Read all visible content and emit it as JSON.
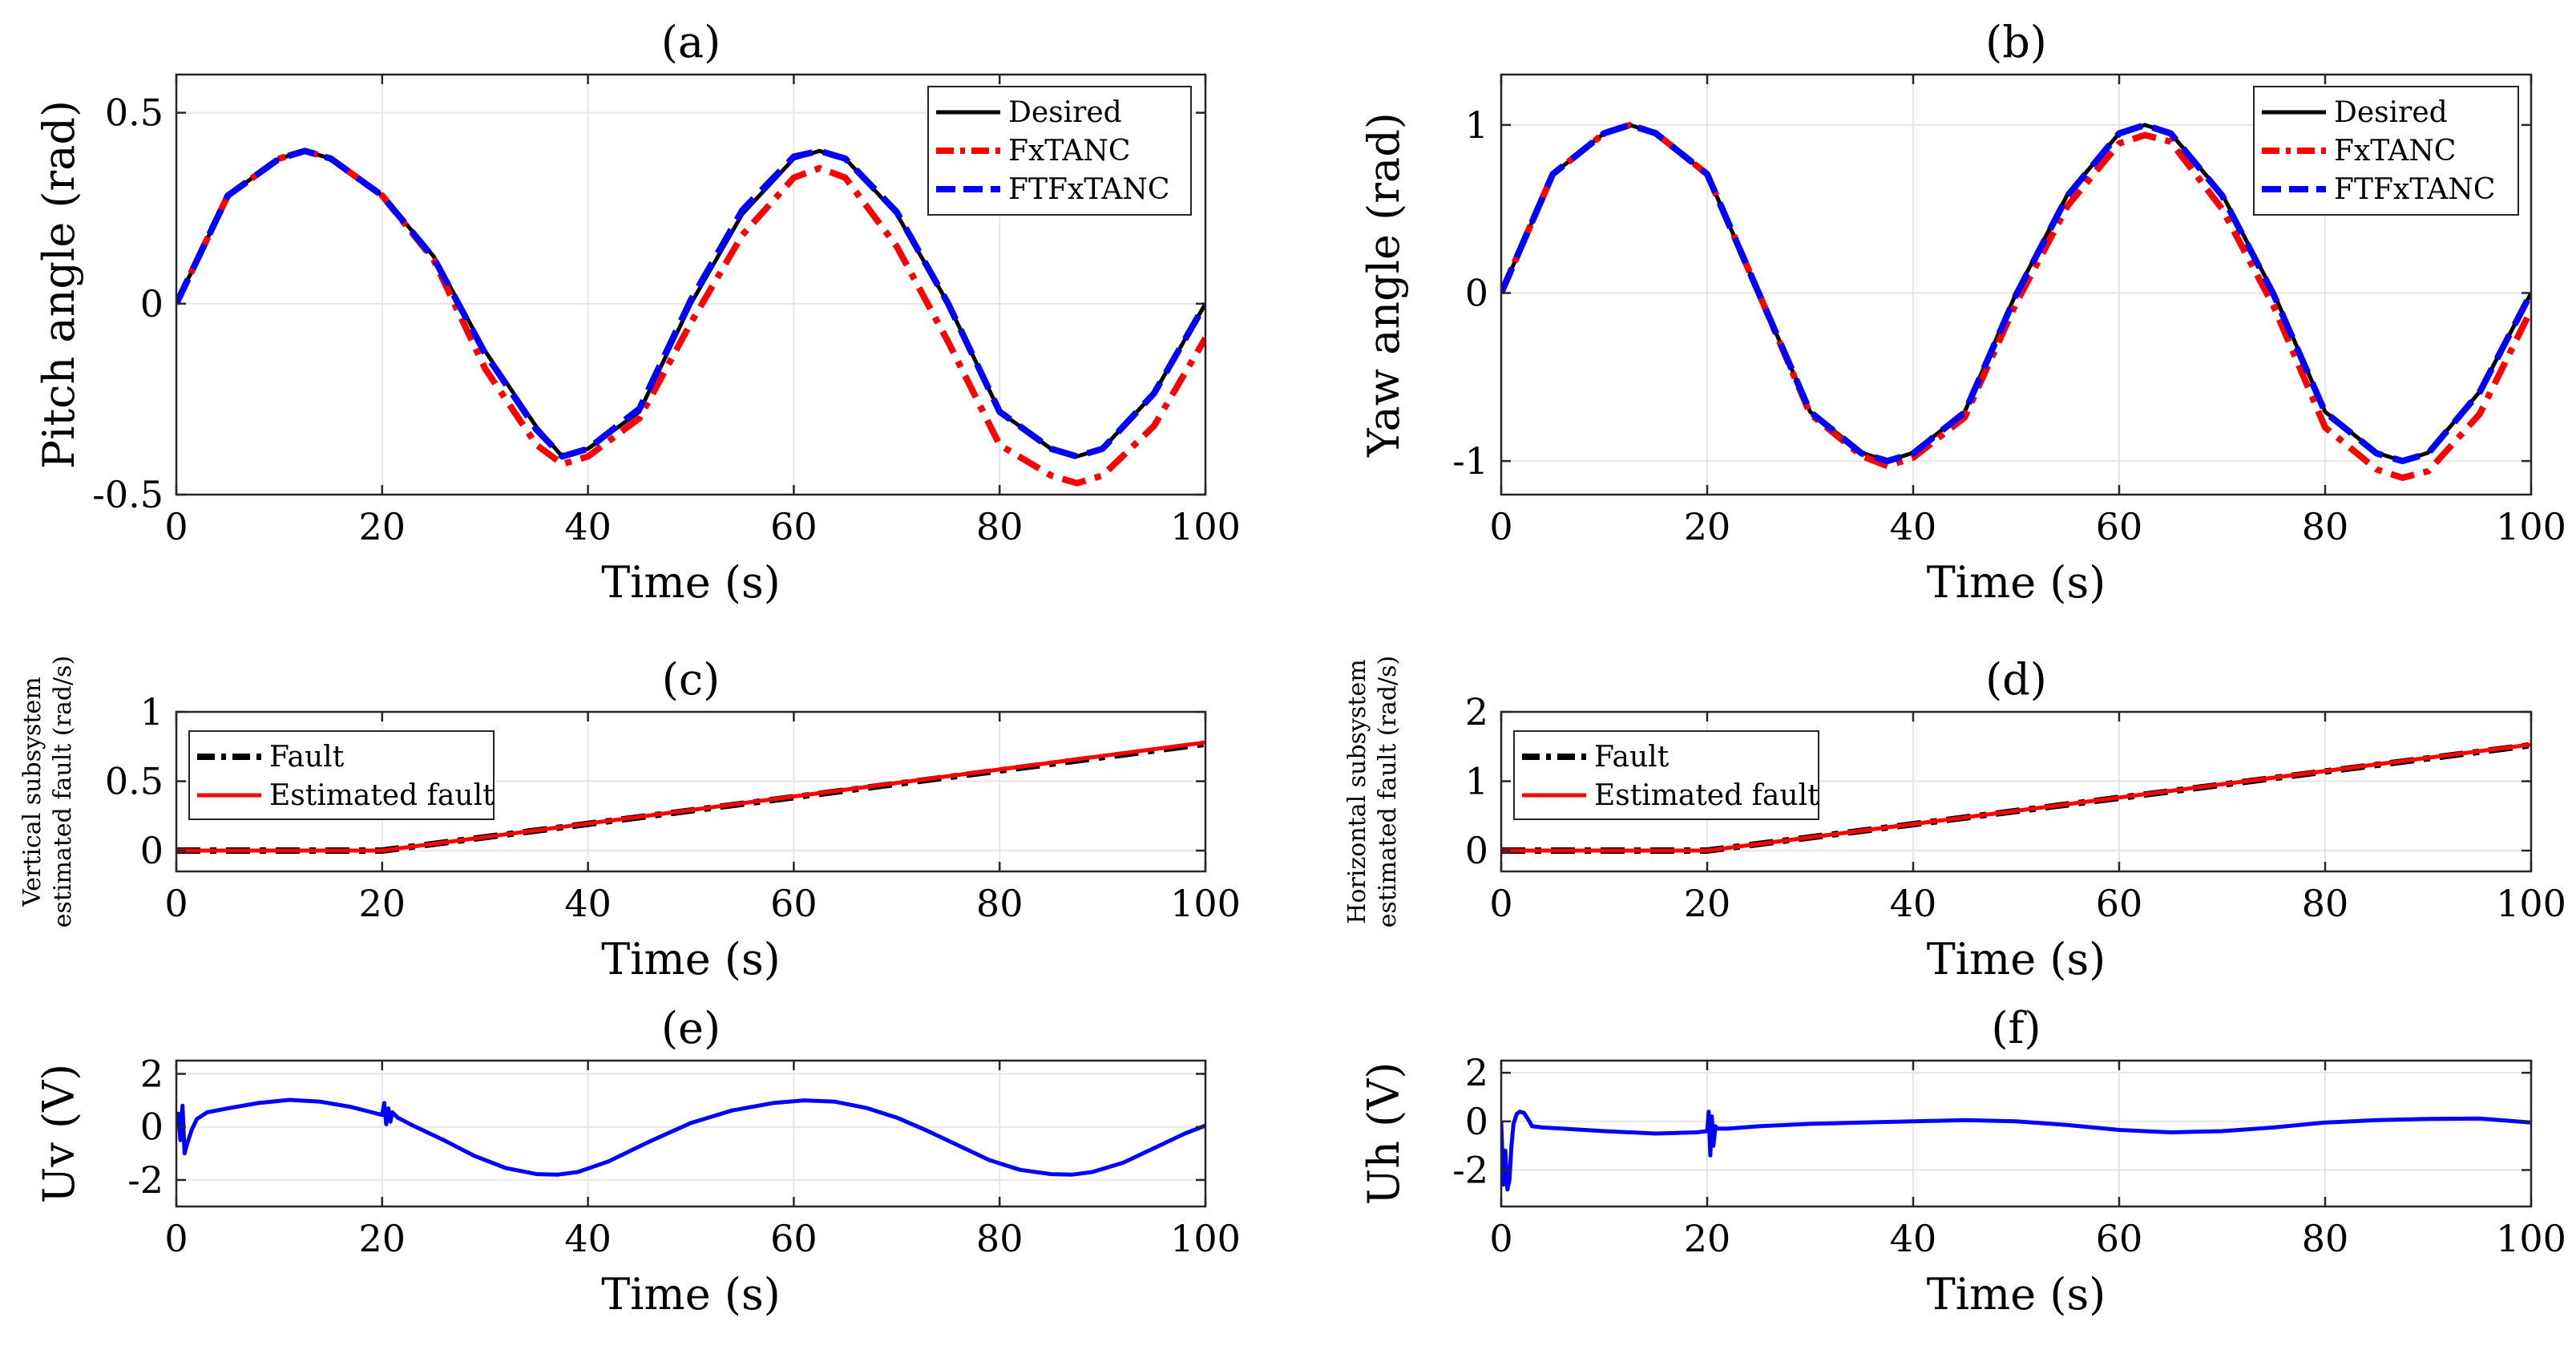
{
  "chart_data": [
    {
      "id": "a",
      "type": "line",
      "title": "(a)",
      "xlabel": "Time (s)",
      "ylabel": "Pitch angle (rad)",
      "xlim": [
        0,
        100
      ],
      "ylim": [
        -0.5,
        0.6
      ],
      "xticks": [
        0,
        20,
        40,
        60,
        80,
        100
      ],
      "xtick_labels": [
        "0",
        "20",
        "40",
        "60",
        "80",
        "100"
      ],
      "yticks": [
        -0.5,
        0,
        0.5
      ],
      "ytick_labels": [
        "-0.5",
        "0",
        "0.5"
      ],
      "grid": true,
      "legend_position": "top-right",
      "series": [
        {
          "name": "Desired",
          "color": "#000000",
          "dash": "solid",
          "x": [
            0,
            5,
            10,
            12.5,
            15,
            20,
            25,
            30,
            35,
            37.5,
            40,
            45,
            50,
            55,
            60,
            62.5,
            65,
            70,
            75,
            80,
            85,
            87.5,
            90,
            95,
            100
          ],
          "y": [
            0,
            0.283,
            0.38,
            0.4,
            0.38,
            0.283,
            0.124,
            -0.124,
            -0.323,
            -0.4,
            -0.38,
            -0.283,
            0,
            0.235,
            0.38,
            0.4,
            0.38,
            0.235,
            0,
            -0.283,
            -0.38,
            -0.4,
            -0.38,
            -0.235,
            0
          ]
        },
        {
          "name": "FxTANC",
          "color": "#ff0000",
          "dash": "dashdot",
          "x": [
            0,
            5,
            10,
            12.5,
            15,
            20,
            25,
            30,
            35,
            37.5,
            40,
            45,
            50,
            55,
            60,
            62.5,
            65,
            70,
            75,
            80,
            85,
            87.5,
            90,
            95,
            100
          ],
          "y": [
            0,
            0.283,
            0.38,
            0.4,
            0.38,
            0.283,
            0.115,
            -0.17,
            -0.37,
            -0.42,
            -0.4,
            -0.3,
            -0.05,
            0.18,
            0.33,
            0.355,
            0.33,
            0.15,
            -0.1,
            -0.37,
            -0.45,
            -0.47,
            -0.45,
            -0.32,
            -0.09
          ]
        },
        {
          "name": "FTFxTANC",
          "color": "#0000ff",
          "dash": "dashed",
          "x": [
            0,
            5,
            10,
            12.5,
            15,
            20,
            25,
            30,
            35,
            37.5,
            40,
            45,
            50,
            55,
            60,
            62.5,
            65,
            70,
            75,
            80,
            85,
            87.5,
            90,
            95,
            100
          ],
          "y": [
            0,
            0.283,
            0.38,
            0.4,
            0.38,
            0.283,
            0.12,
            -0.13,
            -0.33,
            -0.4,
            -0.38,
            -0.275,
            0.01,
            0.245,
            0.385,
            0.4,
            0.38,
            0.24,
            0,
            -0.283,
            -0.38,
            -0.4,
            -0.38,
            -0.235,
            0
          ]
        }
      ]
    },
    {
      "id": "b",
      "type": "line",
      "title": "(b)",
      "xlabel": "Time (s)",
      "ylabel": "Yaw angle (rad)",
      "xlim": [
        0,
        100
      ],
      "ylim": [
        -1.2,
        1.3
      ],
      "xticks": [
        0,
        20,
        40,
        60,
        80,
        100
      ],
      "xtick_labels": [
        "0",
        "20",
        "40",
        "60",
        "80",
        "100"
      ],
      "yticks": [
        -1,
        0,
        1
      ],
      "ytick_labels": [
        "-1",
        "0",
        "1"
      ],
      "grid": true,
      "legend_position": "top-right",
      "series": [
        {
          "name": "Desired",
          "color": "#000000",
          "dash": "solid",
          "x": [
            0,
            5,
            10,
            12.5,
            15,
            20,
            25,
            30,
            35,
            37.5,
            40,
            45,
            50,
            55,
            60,
            62.5,
            65,
            70,
            75,
            80,
            85,
            87.5,
            90,
            95,
            100
          ],
          "y": [
            0,
            0.707,
            0.951,
            1,
            0.951,
            0.707,
            0,
            -0.707,
            -0.951,
            -1,
            -0.951,
            -0.707,
            0,
            0.588,
            0.951,
            1,
            0.951,
            0.588,
            0,
            -0.707,
            -0.951,
            -1,
            -0.951,
            -0.588,
            0
          ]
        },
        {
          "name": "FxTANC",
          "color": "#ff0000",
          "dash": "dashdot",
          "x": [
            0,
            5,
            10,
            12.5,
            15,
            20,
            25,
            30,
            35,
            37.5,
            40,
            45,
            50,
            55,
            60,
            62.5,
            65,
            70,
            75,
            80,
            85,
            87.5,
            90,
            95,
            100
          ],
          "y": [
            0,
            0.707,
            0.951,
            1,
            0.951,
            0.707,
            0,
            -0.72,
            -0.97,
            -1.03,
            -0.98,
            -0.74,
            -0.06,
            0.52,
            0.89,
            0.94,
            0.9,
            0.5,
            -0.08,
            -0.8,
            -1.05,
            -1.1,
            -1.06,
            -0.72,
            -0.1
          ]
        },
        {
          "name": "FTFxTANC",
          "color": "#0000ff",
          "dash": "dashed",
          "x": [
            0,
            5,
            10,
            12.5,
            15,
            20,
            25,
            30,
            35,
            37.5,
            40,
            45,
            50,
            55,
            60,
            62.5,
            65,
            70,
            75,
            80,
            85,
            87.5,
            90,
            95,
            100
          ],
          "y": [
            0,
            0.707,
            0.951,
            1,
            0.951,
            0.707,
            0,
            -0.707,
            -0.955,
            -1,
            -0.955,
            -0.71,
            -0.01,
            0.58,
            0.95,
            1,
            0.95,
            0.58,
            -0.01,
            -0.71,
            -0.955,
            -1,
            -0.955,
            -0.59,
            0
          ]
        }
      ]
    },
    {
      "id": "c",
      "type": "line",
      "title": "(c)",
      "xlabel": "Time (s)",
      "ylabel_lines": [
        "Vertical subsystem",
        "estimated fault (rad/s)"
      ],
      "xlim": [
        0,
        100
      ],
      "ylim": [
        -0.15,
        1
      ],
      "xticks": [
        0,
        20,
        40,
        60,
        80,
        100
      ],
      "xtick_labels": [
        "0",
        "20",
        "40",
        "60",
        "80",
        "100"
      ],
      "yticks": [
        0,
        0.5,
        1
      ],
      "ytick_labels": [
        "0",
        "0.5",
        "1"
      ],
      "grid": true,
      "legend_position": "top-left",
      "series": [
        {
          "name": "Fault",
          "color": "#000000",
          "dash": "dashdot",
          "x": [
            0,
            20,
            100
          ],
          "y": [
            0,
            0,
            0.77
          ]
        },
        {
          "name": "Estimated fault",
          "color": "#ff0000",
          "dash": "solid",
          "x": [
            0,
            20,
            100
          ],
          "y": [
            0,
            0,
            0.78
          ]
        }
      ]
    },
    {
      "id": "d",
      "type": "line",
      "title": "(d)",
      "xlabel": "Time (s)",
      "ylabel_lines": [
        "Horizontal subsystem",
        "estimated fault (rad/s)"
      ],
      "xlim": [
        0,
        100
      ],
      "ylim": [
        -0.3,
        2
      ],
      "xticks": [
        0,
        20,
        40,
        60,
        80,
        100
      ],
      "xtick_labels": [
        "0",
        "20",
        "40",
        "60",
        "80",
        "100"
      ],
      "yticks": [
        0,
        1,
        2
      ],
      "ytick_labels": [
        "0",
        "1",
        "2"
      ],
      "grid": true,
      "legend_position": "top-left",
      "series": [
        {
          "name": "Fault",
          "color": "#000000",
          "dash": "dashdot",
          "x": [
            0,
            20,
            100
          ],
          "y": [
            0,
            0,
            1.52
          ]
        },
        {
          "name": "Estimated fault",
          "color": "#ff0000",
          "dash": "solid",
          "x": [
            0,
            20,
            100
          ],
          "y": [
            0,
            0,
            1.53
          ]
        }
      ]
    },
    {
      "id": "e",
      "type": "line",
      "title": "(e)",
      "xlabel": "Time (s)",
      "ylabel": "Uv (V)",
      "xlim": [
        0,
        100
      ],
      "ylim": [
        -3,
        2.5
      ],
      "xticks": [
        0,
        20,
        40,
        60,
        80,
        100
      ],
      "xtick_labels": [
        "0",
        "20",
        "40",
        "60",
        "80",
        "100"
      ],
      "yticks": [
        -2,
        0,
        2
      ],
      "ytick_labels": [
        "-2",
        "0",
        "2"
      ],
      "grid": true,
      "series": [
        {
          "name": "Uv",
          "color": "#0000ff",
          "dash": "solid",
          "x": [
            0,
            0.2,
            0.4,
            0.6,
            0.8,
            1,
            1.5,
            2,
            3,
            5,
            8,
            11,
            14,
            17,
            19,
            20,
            20.2,
            20.4,
            20.6,
            20.8,
            21,
            21.5,
            23,
            26,
            29,
            32,
            35,
            37,
            39,
            42,
            46,
            50,
            54,
            58,
            61,
            64,
            67,
            70,
            73,
            76,
            79,
            82,
            85,
            87,
            89,
            92,
            95,
            98,
            100
          ],
          "y": [
            0,
            0.5,
            -0.5,
            0.8,
            -1.0,
            -0.7,
            -0.1,
            0.3,
            0.55,
            0.7,
            0.9,
            1.02,
            0.95,
            0.75,
            0.55,
            0.45,
            0.9,
            0.1,
            0.7,
            0.2,
            0.55,
            0.35,
            0.05,
            -0.5,
            -1.1,
            -1.55,
            -1.78,
            -1.8,
            -1.7,
            -1.3,
            -0.55,
            0.15,
            0.62,
            0.9,
            1.0,
            0.95,
            0.72,
            0.35,
            -0.15,
            -0.7,
            -1.25,
            -1.62,
            -1.78,
            -1.8,
            -1.7,
            -1.35,
            -0.8,
            -0.25,
            0.05
          ]
        }
      ]
    },
    {
      "id": "f",
      "type": "line",
      "title": "(f)",
      "xlabel": "Time (s)",
      "ylabel": "Uh (V)",
      "xlim": [
        0,
        100
      ],
      "ylim": [
        -3.5,
        2.5
      ],
      "xticks": [
        0,
        20,
        40,
        60,
        80,
        100
      ],
      "xtick_labels": [
        "0",
        "20",
        "40",
        "60",
        "80",
        "100"
      ],
      "yticks": [
        -2,
        0,
        2
      ],
      "ytick_labels": [
        "-2",
        "0",
        "2"
      ],
      "grid": true,
      "series": [
        {
          "name": "Uh",
          "color": "#0000ff",
          "dash": "solid",
          "x": [
            0,
            0.2,
            0.4,
            0.6,
            0.8,
            1,
            1.2,
            1.5,
            1.8,
            2.2,
            2.6,
            3,
            4,
            6,
            10,
            15,
            19,
            20,
            20.15,
            20.3,
            20.45,
            20.6,
            20.8,
            21,
            22,
            25,
            30,
            35,
            40,
            45,
            50,
            55,
            60,
            65,
            70,
            75,
            80,
            85,
            90,
            95,
            100
          ],
          "y": [
            0,
            -2.6,
            -1.2,
            -2.8,
            -2.4,
            -1.0,
            -0.1,
            0.3,
            0.4,
            0.35,
            0.1,
            -0.2,
            -0.25,
            -0.3,
            -0.4,
            -0.5,
            -0.45,
            -0.4,
            0.4,
            -1.4,
            0.2,
            -1.0,
            -0.2,
            -0.3,
            -0.3,
            -0.2,
            -0.1,
            -0.05,
            0,
            0.05,
            0,
            -0.15,
            -0.35,
            -0.45,
            -0.4,
            -0.25,
            -0.05,
            0.05,
            0.1,
            0.12,
            -0.05
          ]
        }
      ]
    }
  ]
}
